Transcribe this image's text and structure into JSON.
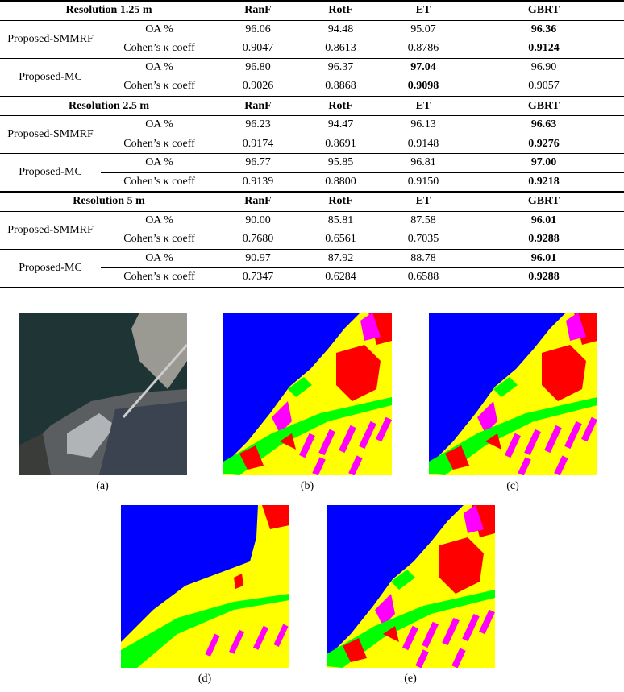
{
  "table": {
    "sections": [
      {
        "title": "Resolution 1.25 m",
        "columns": [
          "RanF",
          "RotF",
          "ET",
          "GBRT"
        ],
        "groups": [
          {
            "name": "Proposed-SMMRF",
            "rows": [
              {
                "metric": "OA %",
                "values": [
                  "96.06",
                  "94.48",
                  "95.07",
                  "96.36"
                ],
                "bold": [
                  3
                ]
              },
              {
                "metric": "Cohen’s κ coeff",
                "values": [
                  "0.9047",
                  "0.8613",
                  "0.8786",
                  "0.9124"
                ],
                "bold": [
                  3
                ]
              }
            ]
          },
          {
            "name": "Proposed-MC",
            "rows": [
              {
                "metric": "OA %",
                "values": [
                  "96.80",
                  "96.37",
                  "97.04",
                  "96.90"
                ],
                "bold": [
                  2
                ]
              },
              {
                "metric": "Cohen’s κ coeff",
                "values": [
                  "0.9026",
                  "0.8868",
                  "0.9098",
                  "0.9057"
                ],
                "bold": [
                  2
                ]
              }
            ]
          }
        ]
      },
      {
        "title": "Resolution 2.5 m",
        "columns": [
          "RanF",
          "RotF",
          "ET",
          "GBRT"
        ],
        "groups": [
          {
            "name": "Proposed-SMMRF",
            "rows": [
              {
                "metric": "OA %",
                "values": [
                  "96.23",
                  "94.47",
                  "96.13",
                  "96.63"
                ],
                "bold": [
                  3
                ]
              },
              {
                "metric": "Cohen’s κ coeff",
                "values": [
                  "0.9174",
                  "0.8691",
                  "0.9148",
                  "0.9276"
                ],
                "bold": [
                  3
                ]
              }
            ]
          },
          {
            "name": "Proposed-MC",
            "rows": [
              {
                "metric": "OA %",
                "values": [
                  "96.77",
                  "95.85",
                  "96.81",
                  "97.00"
                ],
                "bold": [
                  3
                ]
              },
              {
                "metric": "Cohen’s κ coeff",
                "values": [
                  "0.9139",
                  "0.8800",
                  "0.9150",
                  "0.9218"
                ],
                "bold": [
                  3
                ]
              }
            ]
          }
        ]
      },
      {
        "title": "Resolution 5 m",
        "columns": [
          "RanF",
          "RotF",
          "ET",
          "GBRT"
        ],
        "groups": [
          {
            "name": "Proposed-SMMRF",
            "rows": [
              {
                "metric": "OA %",
                "values": [
                  "90.00",
                  "85.81",
                  "87.58",
                  "96.01"
                ],
                "bold": [
                  3
                ]
              },
              {
                "metric": "Cohen’s κ coeff",
                "values": [
                  "0.7680",
                  "0.6561",
                  "0.7035",
                  "0.9288"
                ],
                "bold": [
                  3
                ]
              }
            ]
          },
          {
            "name": "Proposed-MC",
            "rows": [
              {
                "metric": "OA %",
                "values": [
                  "90.97",
                  "87.92",
                  "88.78",
                  "96.01"
                ],
                "bold": [
                  3
                ]
              },
              {
                "metric": "Cohen’s κ coeff",
                "values": [
                  "0.7347",
                  "0.6284",
                  "0.6588",
                  "0.9288"
                ],
                "bold": [
                  3
                ]
              }
            ]
          }
        ]
      }
    ]
  },
  "figure": {
    "panels": [
      "(a)",
      "(b)",
      "(c)",
      "(d)",
      "(e)"
    ]
  }
}
